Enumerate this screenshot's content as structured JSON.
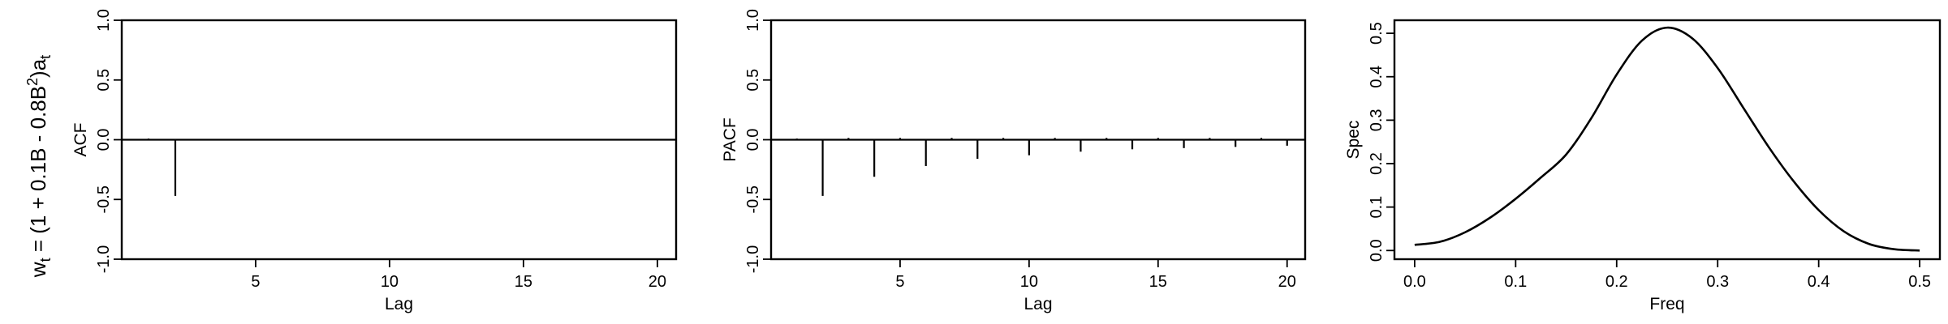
{
  "row_label": {
    "w": "w",
    "t1": "t",
    "mid1": " = (1 + 0.1B - 0.8B",
    "sup": "2",
    "mid2": ")a",
    "t2": "t"
  },
  "chart_data": [
    {
      "type": "bar",
      "ylabel": "ACF",
      "xlabel": "Lag",
      "xlim": [
        0,
        20.7
      ],
      "ylim": [
        -1.0,
        1.0
      ],
      "xticks": [
        5,
        10,
        15,
        20
      ],
      "yticks": [
        -1.0,
        -0.5,
        0.0,
        0.5,
        1.0
      ],
      "ytick_labels": [
        "-1.0",
        "-0.5",
        "0.0",
        "0.5",
        "1.0"
      ],
      "x": [
        1,
        2
      ],
      "values": [
        0.01,
        -0.47
      ]
    },
    {
      "type": "bar",
      "ylabel": "PACF",
      "xlabel": "Lag",
      "xlim": [
        0,
        20.7
      ],
      "ylim": [
        -1.0,
        1.0
      ],
      "xticks": [
        5,
        10,
        15,
        20
      ],
      "yticks": [
        -1.0,
        -0.5,
        0.0,
        0.5,
        1.0
      ],
      "ytick_labels": [
        "-1.0",
        "-0.5",
        "0.0",
        "0.5",
        "1.0"
      ],
      "x": [
        1,
        2,
        3,
        4,
        5,
        6,
        7,
        8,
        9,
        10,
        11,
        12,
        13,
        14,
        15,
        16,
        17,
        18,
        19,
        20
      ],
      "values": [
        0.01,
        -0.47,
        0.015,
        -0.31,
        0.015,
        -0.22,
        0.015,
        -0.16,
        0.015,
        -0.13,
        0.015,
        -0.1,
        0.015,
        -0.08,
        0.015,
        -0.07,
        0.015,
        -0.06,
        0.015,
        -0.05
      ]
    },
    {
      "type": "line",
      "ylabel": "Spec",
      "xlabel": "Freq",
      "xlim": [
        -0.02,
        0.52
      ],
      "ylim": [
        -0.02,
        0.53
      ],
      "xticks": [
        0.0,
        0.1,
        0.2,
        0.3,
        0.4,
        0.5
      ],
      "xtick_labels": [
        "0.0",
        "0.1",
        "0.2",
        "0.3",
        "0.4",
        "0.5"
      ],
      "yticks": [
        0.0,
        0.1,
        0.2,
        0.3,
        0.4,
        0.5
      ],
      "ytick_labels": [
        "0.0",
        "0.1",
        "0.2",
        "0.3",
        "0.4",
        "0.5"
      ],
      "x": [
        0.0,
        0.025,
        0.05,
        0.075,
        0.1,
        0.125,
        0.15,
        0.175,
        0.2,
        0.225,
        0.25,
        0.275,
        0.3,
        0.325,
        0.35,
        0.375,
        0.4,
        0.425,
        0.45,
        0.475,
        0.5
      ],
      "y": [
        0.013,
        0.02,
        0.042,
        0.076,
        0.119,
        0.168,
        0.221,
        0.305,
        0.405,
        0.483,
        0.513,
        0.488,
        0.42,
        0.33,
        0.24,
        0.16,
        0.093,
        0.044,
        0.015,
        0.003,
        0.0
      ]
    }
  ]
}
